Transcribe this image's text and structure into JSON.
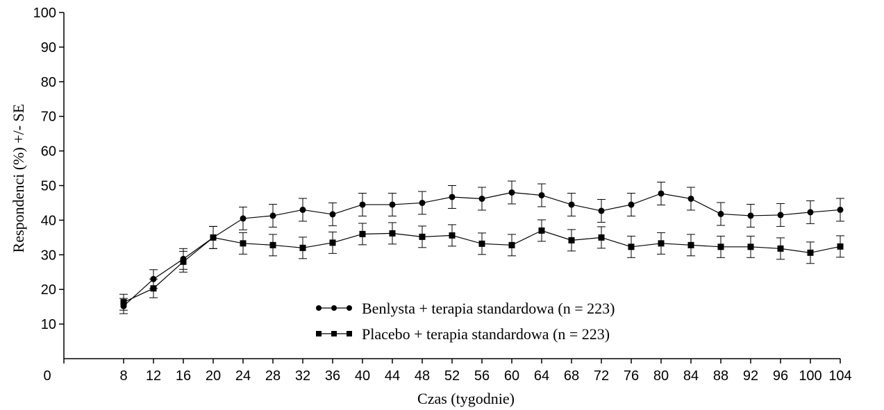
{
  "chart_data": {
    "type": "line",
    "title": "",
    "xlabel": "Czas (tygodnie)",
    "ylabel": "Respondenci (%) +/- SE",
    "xlim": [
      0,
      104
    ],
    "ylim": [
      0,
      100
    ],
    "x_ticks": [
      0,
      8,
      12,
      16,
      20,
      24,
      28,
      32,
      36,
      40,
      44,
      48,
      52,
      56,
      60,
      64,
      68,
      72,
      76,
      80,
      84,
      88,
      92,
      96,
      100,
      104
    ],
    "y_ticks": [
      10,
      20,
      30,
      40,
      50,
      60,
      70,
      80,
      90,
      100
    ],
    "grid": false,
    "legend_position": "lower-center",
    "series": [
      {
        "name": "Benlysta + terapia standardowa (n = 223)",
        "marker": "circle",
        "x": [
          8,
          12,
          16,
          20,
          24,
          28,
          32,
          36,
          40,
          44,
          48,
          52,
          56,
          60,
          64,
          68,
          72,
          76,
          80,
          84,
          88,
          92,
          96,
          100,
          104
        ],
        "values": [
          15.2,
          23.0,
          28.8,
          35.0,
          40.5,
          41.3,
          43.0,
          41.7,
          44.5,
          44.5,
          45.0,
          46.7,
          46.2,
          48.0,
          47.2,
          44.5,
          42.7,
          44.5,
          47.7,
          46.2,
          41.8,
          41.3,
          41.5,
          42.3,
          43.0
        ],
        "se": [
          2.2,
          2.7,
          3.0,
          3.2,
          3.3,
          3.3,
          3.3,
          3.3,
          3.3,
          3.3,
          3.3,
          3.3,
          3.3,
          3.3,
          3.3,
          3.3,
          3.3,
          3.3,
          3.3,
          3.3,
          3.3,
          3.3,
          3.3,
          3.3,
          3.3
        ]
      },
      {
        "name": "Placebo + terapia standardowa (n = 223)",
        "marker": "square",
        "x": [
          8,
          12,
          16,
          20,
          24,
          28,
          32,
          36,
          40,
          44,
          48,
          52,
          56,
          60,
          64,
          68,
          72,
          76,
          80,
          84,
          88,
          92,
          96,
          100,
          104
        ],
        "values": [
          16.3,
          20.3,
          28.0,
          35.0,
          33.3,
          32.8,
          32.0,
          33.5,
          36.0,
          36.2,
          35.2,
          35.6,
          33.2,
          32.8,
          37.0,
          34.2,
          35.0,
          32.3,
          33.3,
          32.8,
          32.3,
          32.3,
          31.8,
          30.6,
          32.4
        ],
        "se": [
          2.3,
          2.7,
          3.0,
          3.2,
          3.1,
          3.1,
          3.1,
          3.1,
          3.1,
          3.1,
          3.1,
          3.1,
          3.1,
          3.1,
          3.1,
          3.1,
          3.1,
          3.1,
          3.1,
          3.1,
          3.1,
          3.1,
          3.1,
          3.1,
          3.1
        ]
      }
    ]
  }
}
